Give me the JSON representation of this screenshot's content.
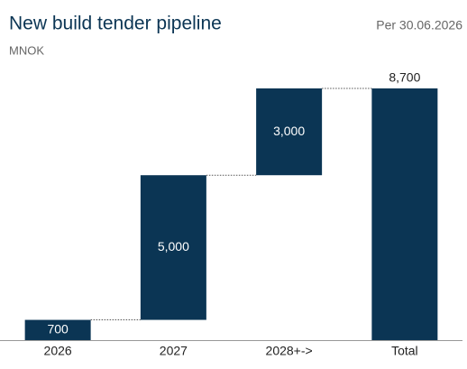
{
  "chart_data": {
    "type": "waterfall",
    "title": "New build tender pipeline",
    "date_note": "Per 30.06.2026",
    "unit": "MNOK",
    "categories": [
      "2026",
      "2027",
      "2028+->",
      "Total"
    ],
    "values": [
      700,
      5000,
      3000,
      8700
    ],
    "value_labels": [
      "700",
      "5,000",
      "3,000",
      "8,700"
    ],
    "color": "#0b3554"
  }
}
